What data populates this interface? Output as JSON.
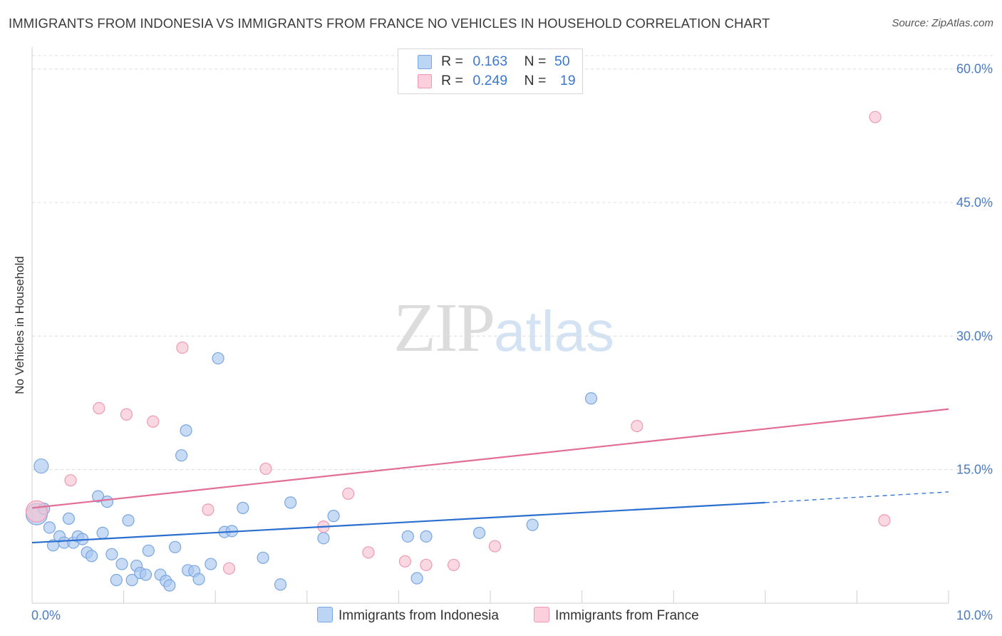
{
  "title": "IMMIGRANTS FROM INDONESIA VS IMMIGRANTS FROM FRANCE NO VEHICLES IN HOUSEHOLD CORRELATION CHART",
  "source": "Source: ZipAtlas.com",
  "watermark": {
    "zip": "ZIP",
    "atlas": "atlas"
  },
  "legend": {
    "rows": [
      {
        "r_label": "R =",
        "r_value": "0.163",
        "n_label": "N =",
        "n_value": "50"
      },
      {
        "r_label": "R =",
        "r_value": "0.249",
        "n_label": "N =",
        "n_value": "19"
      }
    ]
  },
  "chart_data": {
    "type": "scatter",
    "title": "IMMIGRANTS FROM INDONESIA VS IMMIGRANTS FROM FRANCE NO VEHICLES IN HOUSEHOLD CORRELATION CHART",
    "xlabel": "",
    "ylabel": "No Vehicles in Household",
    "xlim": [
      0,
      10
    ],
    "ylim": [
      0,
      61.5
    ],
    "x_tick_labels": [
      "0.0%",
      "10.0%"
    ],
    "y_ticks": [
      15,
      30,
      45,
      60
    ],
    "y_tick_labels": [
      "15.0%",
      "30.0%",
      "45.0%",
      "60.0%"
    ],
    "grid": true,
    "series": [
      {
        "name": "Immigrants from Indonesia",
        "color": "#a9c8ef",
        "stroke": "#7aa6e0",
        "line_color": "#2a6fcf",
        "trend": {
          "x0": 0.0,
          "y0": 6.8,
          "x1": 8.0,
          "y1": 11.3,
          "dash_to_x": 10.0,
          "dash_to_y": 12.5
        },
        "points": [
          [
            0.05,
            10.0,
            "l"
          ],
          [
            0.1,
            15.4,
            "m"
          ],
          [
            0.13,
            10.6
          ],
          [
            0.19,
            8.5
          ],
          [
            0.23,
            6.5
          ],
          [
            0.3,
            7.5
          ],
          [
            0.35,
            6.8
          ],
          [
            0.4,
            9.5
          ],
          [
            0.45,
            6.8
          ],
          [
            0.5,
            7.5
          ],
          [
            0.55,
            7.2
          ],
          [
            0.6,
            5.7
          ],
          [
            0.65,
            5.3
          ],
          [
            0.72,
            12.0
          ],
          [
            0.77,
            7.9
          ],
          [
            0.82,
            11.4
          ],
          [
            0.87,
            5.5
          ],
          [
            0.92,
            2.6
          ],
          [
            0.98,
            4.4
          ],
          [
            1.05,
            9.3
          ],
          [
            1.09,
            2.6
          ],
          [
            1.14,
            4.2
          ],
          [
            1.18,
            3.4
          ],
          [
            1.24,
            3.2
          ],
          [
            1.27,
            5.9
          ],
          [
            1.4,
            3.2
          ],
          [
            1.46,
            2.5
          ],
          [
            1.5,
            2.0
          ],
          [
            1.56,
            6.3
          ],
          [
            1.63,
            16.6
          ],
          [
            1.68,
            19.4
          ],
          [
            1.7,
            3.7
          ],
          [
            1.77,
            3.6
          ],
          [
            1.82,
            2.7
          ],
          [
            1.95,
            4.4
          ],
          [
            2.03,
            27.5
          ],
          [
            2.1,
            8.0
          ],
          [
            2.18,
            8.1
          ],
          [
            2.3,
            10.7
          ],
          [
            2.52,
            5.1
          ],
          [
            2.71,
            2.1
          ],
          [
            2.82,
            11.3
          ],
          [
            3.18,
            7.3
          ],
          [
            3.29,
            9.8
          ],
          [
            4.1,
            7.5
          ],
          [
            4.3,
            7.5
          ],
          [
            4.88,
            7.9
          ],
          [
            5.46,
            8.8
          ],
          [
            6.1,
            23.0
          ],
          [
            4.2,
            2.8
          ]
        ]
      },
      {
        "name": "Immigrants from France",
        "color": "#f7c3d2",
        "stroke": "#ee9ab4",
        "line_color": "#e26d97",
        "trend": {
          "x0": 0.0,
          "y0": 10.7,
          "x1": 10.0,
          "y1": 21.8
        },
        "points": [
          [
            0.05,
            10.3,
            "l"
          ],
          [
            0.42,
            13.8
          ],
          [
            0.73,
            21.9
          ],
          [
            1.03,
            21.2
          ],
          [
            1.32,
            20.4
          ],
          [
            1.64,
            28.7
          ],
          [
            1.92,
            10.5
          ],
          [
            2.15,
            3.9
          ],
          [
            2.55,
            15.1
          ],
          [
            3.18,
            8.6
          ],
          [
            3.45,
            12.3
          ],
          [
            3.67,
            5.7
          ],
          [
            4.07,
            4.7
          ],
          [
            4.3,
            4.3
          ],
          [
            4.6,
            4.3
          ],
          [
            5.05,
            6.4
          ],
          [
            6.6,
            19.9
          ],
          [
            9.2,
            54.6
          ],
          [
            9.3,
            9.3
          ]
        ]
      }
    ]
  }
}
